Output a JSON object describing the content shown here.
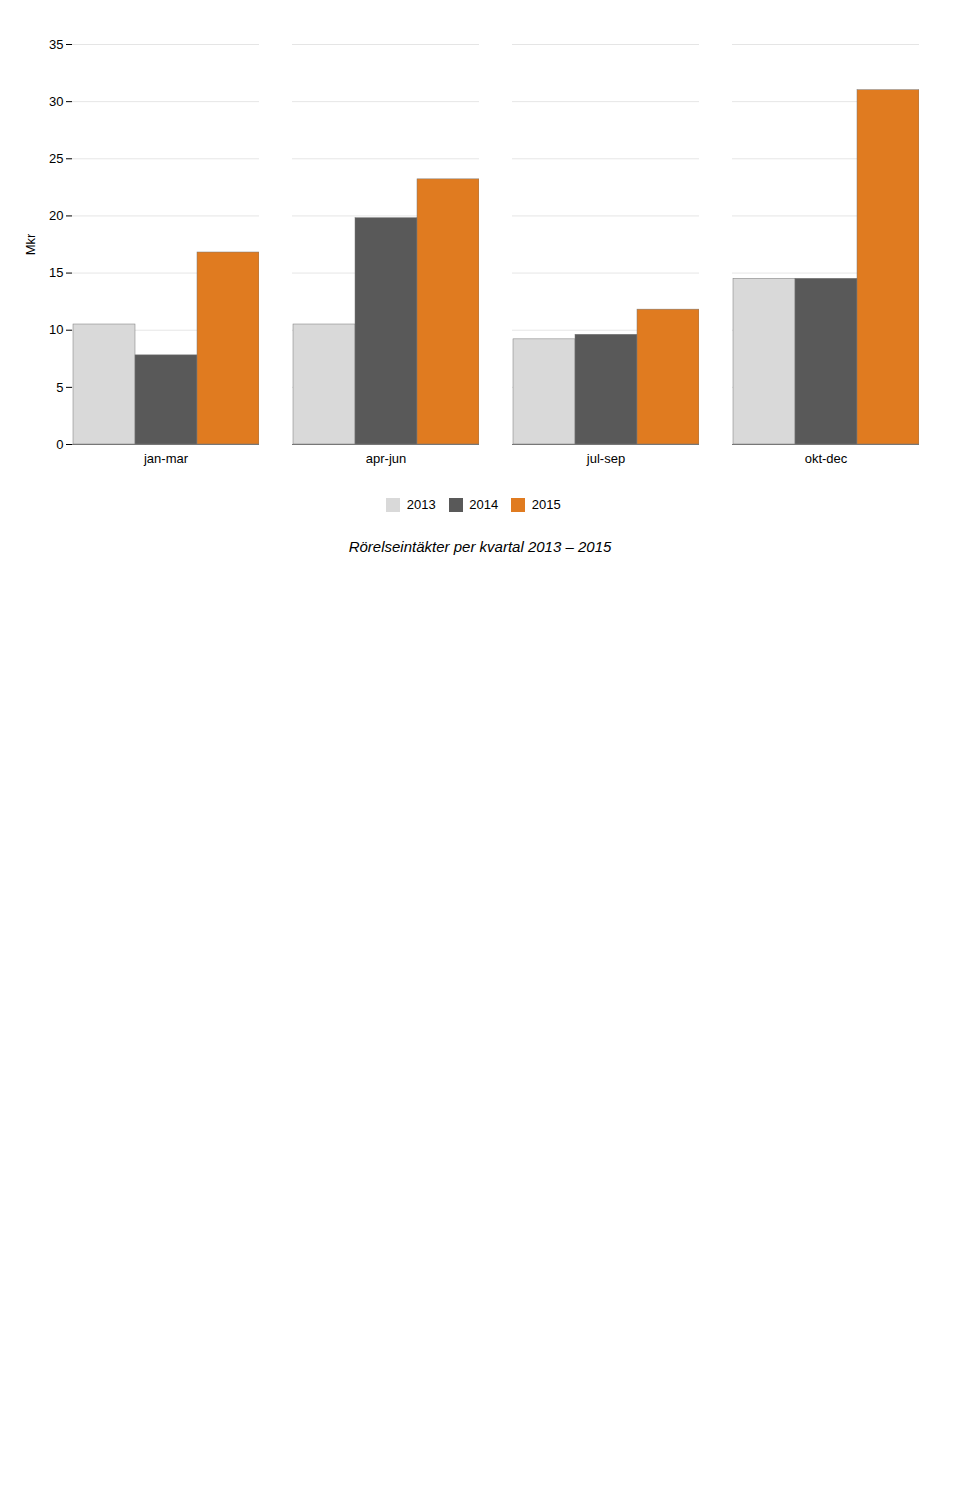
{
  "chart_data": {
    "type": "bar",
    "title": "Rörelseintäkter per kvartal 2013 – 2015",
    "ylabel": "Mkr",
    "categories": [
      "jan-mar",
      "apr-jun",
      "jul-sep",
      "okt-dec"
    ],
    "series": [
      {
        "name": "2013",
        "color": "#d9d9d9",
        "values": [
          10.5,
          10.5,
          9.2,
          14.5
        ]
      },
      {
        "name": "2014",
        "color": "#595959",
        "values": [
          7.8,
          19.8,
          9.6,
          14.5
        ]
      },
      {
        "name": "2015",
        "color": "#e07b20",
        "values": [
          16.8,
          23.2,
          11.8,
          31.0
        ]
      }
    ],
    "ylim": [
      0,
      35
    ],
    "yticks": [
      0,
      5,
      10,
      15,
      20,
      25,
      30,
      35
    ],
    "grid": true,
    "legend": "bottom"
  }
}
